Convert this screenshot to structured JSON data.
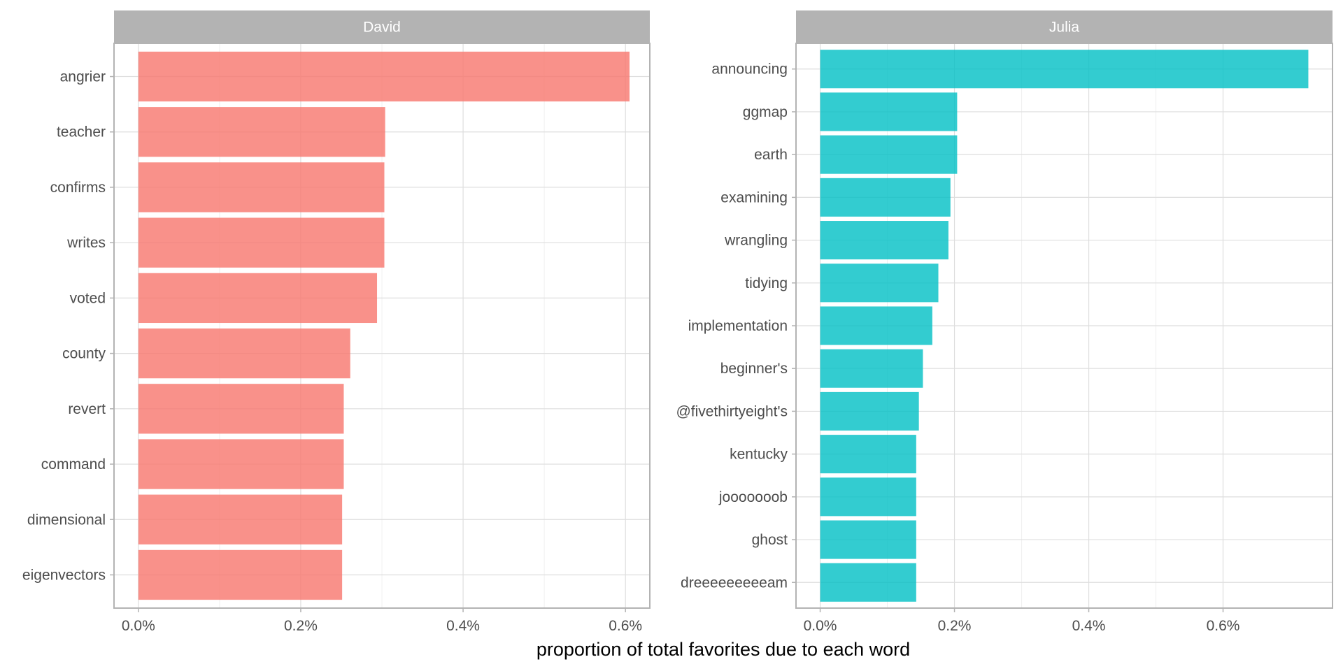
{
  "chart_data": {
    "type": "bar",
    "orientation": "horizontal",
    "xlabel": "proportion of total favorites due to each word",
    "grid": true,
    "legend": "none",
    "facets": [
      {
        "name": "David",
        "color": "#F8766D",
        "categories": [
          "angrier",
          "teacher",
          "confirms",
          "writes",
          "voted",
          "county",
          "revert",
          "command",
          "dimensional",
          "eigenvectors"
        ],
        "values": [
          0.00605,
          0.00304,
          0.00303,
          0.00303,
          0.00294,
          0.00261,
          0.00253,
          0.00253,
          0.00251,
          0.00251
        ],
        "xlim": [
          -0.0003,
          0.0063
        ],
        "xticks": [
          0,
          0.002,
          0.004,
          0.006
        ],
        "xtick_labels": [
          "0.0%",
          "0.2%",
          "0.4%",
          "0.6%"
        ]
      },
      {
        "name": "Julia",
        "color": "#00BFC4",
        "categories": [
          "announcing",
          "ggmap",
          "earth",
          "examining",
          "wrangling",
          "tidying",
          "implementation",
          "beginner's",
          "@fivethirtyeight's",
          "kentucky",
          "jooooooob",
          "ghost",
          "dreeeeeeeeeam"
        ],
        "values": [
          0.00727,
          0.00204,
          0.00204,
          0.00194,
          0.00191,
          0.00176,
          0.00167,
          0.00153,
          0.00147,
          0.00143,
          0.00143,
          0.00143,
          0.00143
        ],
        "xlim": [
          -0.00036,
          0.00763
        ],
        "xticks": [
          0,
          0.002,
          0.004,
          0.006
        ],
        "xtick_labels": [
          "0.0%",
          "0.2%",
          "0.4%",
          "0.6%"
        ]
      }
    ]
  }
}
